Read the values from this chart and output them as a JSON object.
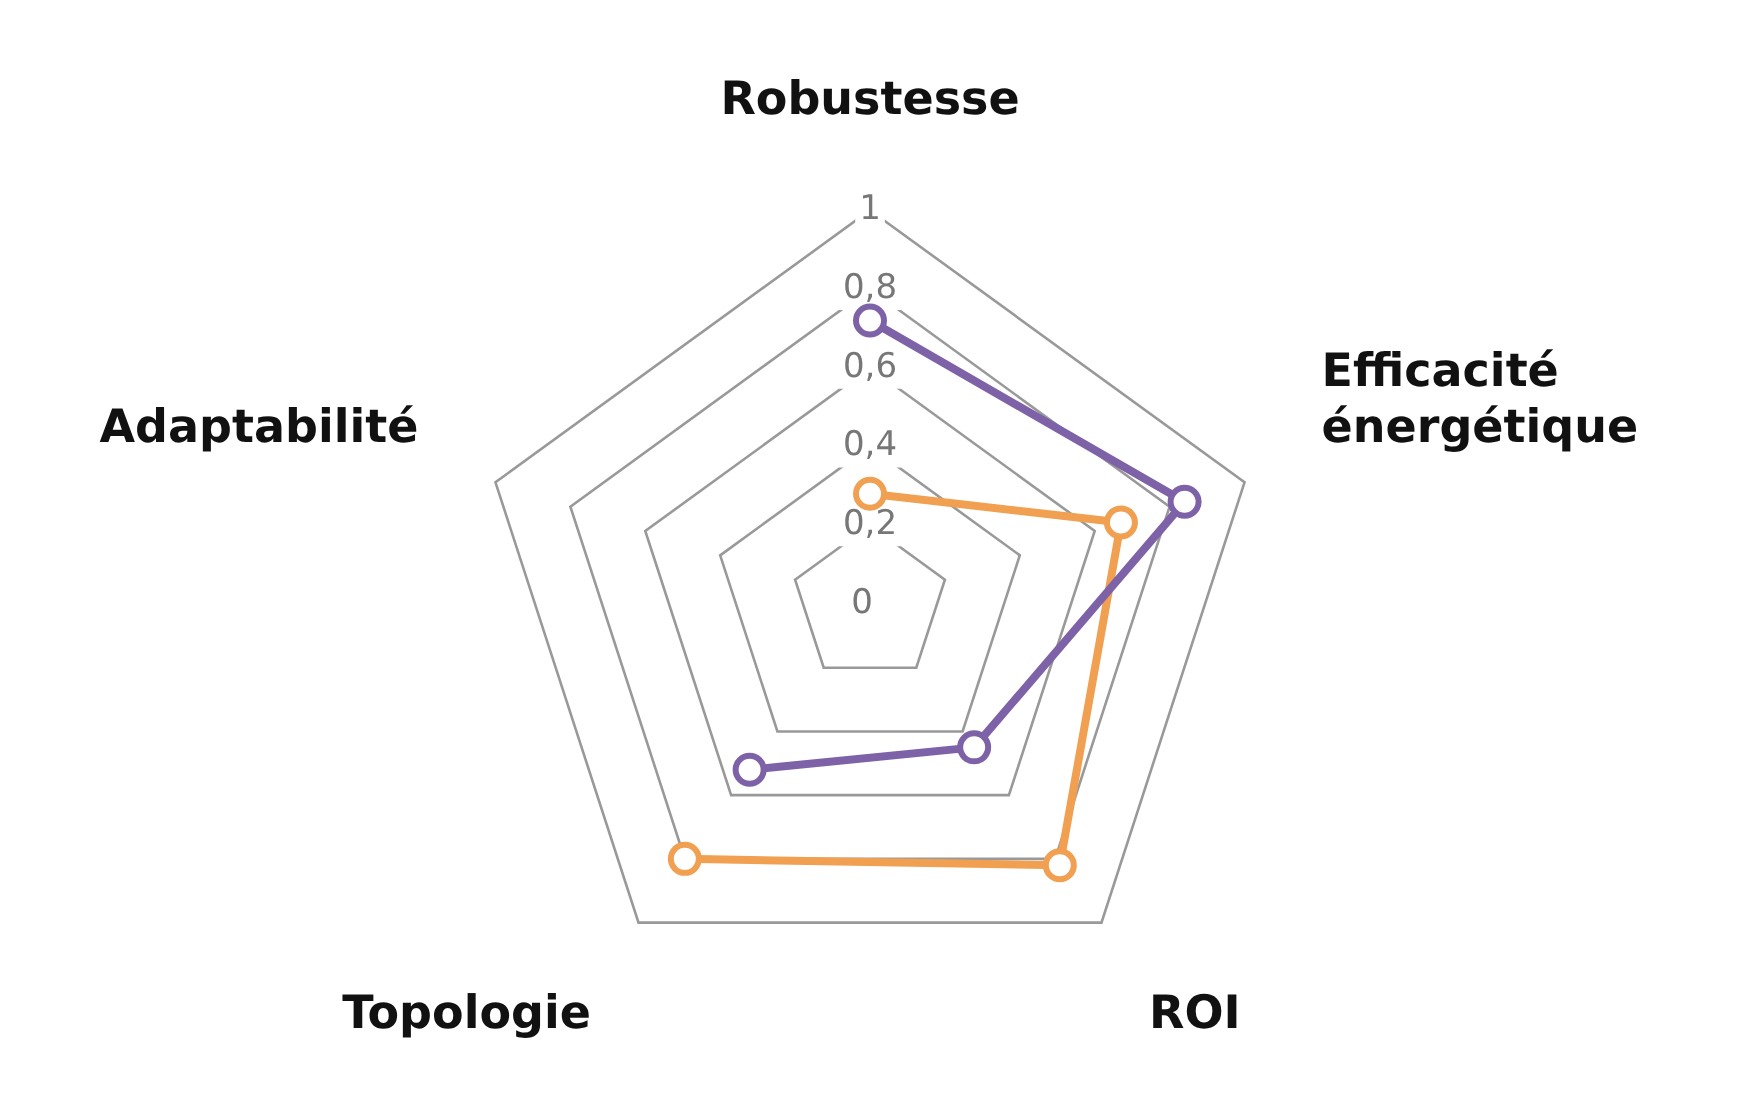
{
  "chart_data": {
    "type": "radar",
    "categories": [
      "Robustesse",
      "Efficacité énergétique",
      "ROI",
      "Topologie",
      "Adaptabilité"
    ],
    "series": [
      {
        "color": "#7d62a8",
        "values": [
          0.72,
          0.84,
          0.45,
          0.52,
          null
        ]
      },
      {
        "color": "#f0a050",
        "values": [
          0.28,
          0.67,
          0.82,
          0.8,
          null
        ]
      }
    ],
    "ylim": [
      0,
      1
    ],
    "yticks": [
      {
        "value": 0,
        "label": "0"
      },
      {
        "value": 0.2,
        "label": "0,2"
      },
      {
        "value": 0.4,
        "label": "0,4"
      },
      {
        "value": 0.6,
        "label": "0,6"
      },
      {
        "value": 0.8,
        "label": "0,8"
      },
      {
        "value": 1,
        "label": "1"
      }
    ],
    "grid": true,
    "legend": false,
    "marker": "circle",
    "line_style": "solid"
  }
}
